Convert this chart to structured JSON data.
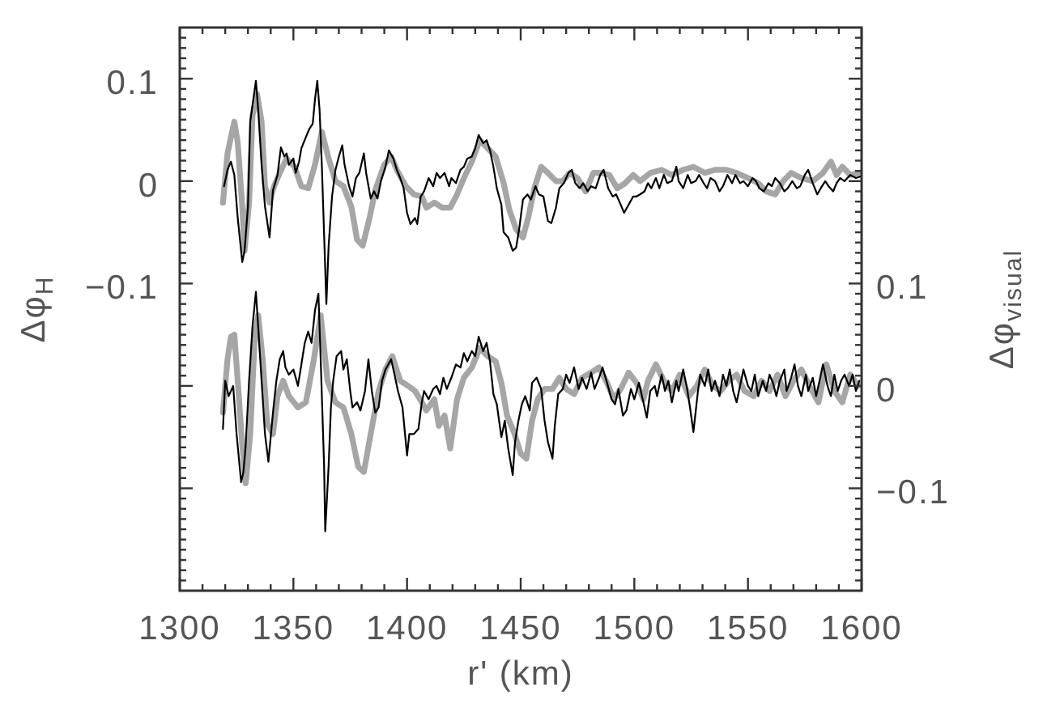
{
  "chart_data": {
    "type": "line",
    "xlabel": "r' (km)",
    "ylabel": "Δφ$_{H}$",
    "y2label": "Δφ$_{visual}$",
    "xlim": [
      1300,
      1600
    ],
    "ylim": [
      -0.4,
      0.15
    ],
    "y2lim": [
      -0.2,
      0.35
    ],
    "xticks": [
      1300,
      {
        "value": 1310,
        "label": null
      },
      {
        "value": 1320,
        "label": null
      },
      {
        "value": 1330,
        "label": null
      },
      {
        "value": 1340,
        "label": null
      },
      1350,
      {
        "value": 1360,
        "label": null
      },
      {
        "value": 1370,
        "label": null
      },
      {
        "value": 1380,
        "label": null
      },
      {
        "value": 1390,
        "label": null
      },
      1400,
      {
        "value": 1410,
        "label": null
      },
      {
        "value": 1420,
        "label": null
      },
      {
        "value": 1430,
        "label": null
      },
      {
        "value": 1440,
        "label": null
      },
      1450,
      {
        "value": 1460,
        "label": null
      },
      {
        "value": 1470,
        "label": null
      },
      {
        "value": 1480,
        "label": null
      },
      {
        "value": 1490,
        "label": null
      },
      1500,
      {
        "value": 1510,
        "label": null
      },
      {
        "value": 1520,
        "label": null
      },
      {
        "value": 1530,
        "label": null
      },
      {
        "value": 1540,
        "label": null
      },
      1550,
      {
        "value": 1560,
        "label": null
      },
      {
        "value": 1570,
        "label": null
      },
      {
        "value": 1580,
        "label": null
      },
      {
        "value": 1590,
        "label": null
      },
      1600
    ],
    "yticks": [
      {
        "value": -0.39,
        "label": null
      },
      {
        "value": -0.38,
        "label": null
      },
      {
        "value": -0.37,
        "label": null
      },
      {
        "value": -0.36,
        "label": null
      },
      {
        "value": -0.35,
        "label": null
      },
      {
        "value": -0.34,
        "label": null
      },
      {
        "value": -0.33,
        "label": null
      },
      {
        "value": -0.32,
        "label": null
      },
      {
        "value": -0.31,
        "label": null
      },
      {
        "value": -0.3,
        "label": null
      },
      {
        "value": -0.29,
        "label": null
      },
      {
        "value": -0.28,
        "label": null
      },
      {
        "value": -0.27,
        "label": null
      },
      {
        "value": -0.26,
        "label": null
      },
      {
        "value": -0.25,
        "label": null
      },
      {
        "value": -0.24,
        "label": null
      },
      {
        "value": -0.23,
        "label": null
      },
      {
        "value": -0.22,
        "label": null
      },
      {
        "value": -0.21,
        "label": null
      },
      {
        "value": -0.2,
        "label": null
      },
      {
        "value": -0.19,
        "label": null
      },
      {
        "value": -0.18,
        "label": null
      },
      {
        "value": -0.17,
        "label": null
      },
      {
        "value": -0.16,
        "label": null
      },
      {
        "value": -0.15,
        "label": null
      },
      {
        "value": -0.14,
        "label": null
      },
      {
        "value": -0.13,
        "label": null
      },
      {
        "value": -0.12,
        "label": null
      },
      {
        "value": -0.11,
        "label": null
      },
      {
        "value": -0.1,
        "label": "−0.1"
      },
      {
        "value": -0.09,
        "label": null
      },
      {
        "value": -0.08,
        "label": null
      },
      {
        "value": -0.07,
        "label": null
      },
      {
        "value": -0.06,
        "label": null
      },
      {
        "value": -0.05,
        "label": null
      },
      {
        "value": -0.04,
        "label": null
      },
      {
        "value": -0.03,
        "label": null
      },
      {
        "value": -0.02,
        "label": null
      },
      {
        "value": -0.01,
        "label": null
      },
      0,
      {
        "value": 0.01,
        "label": null
      },
      {
        "value": 0.02,
        "label": null
      },
      {
        "value": 0.03,
        "label": null
      },
      {
        "value": 0.04,
        "label": null
      },
      {
        "value": 0.05,
        "label": null
      },
      {
        "value": 0.06,
        "label": null
      },
      {
        "value": 0.07,
        "label": null
      },
      {
        "value": 0.08,
        "label": null
      },
      {
        "value": 0.09,
        "label": null
      },
      0.1,
      {
        "value": 0.11,
        "label": null
      },
      {
        "value": 0.12,
        "label": null
      },
      {
        "value": 0.13,
        "label": null
      },
      {
        "value": 0.14,
        "label": null
      }
    ],
    "y2ticks": [
      {
        "value": -0.19,
        "label": null
      },
      {
        "value": -0.18,
        "label": null
      },
      {
        "value": -0.17,
        "label": null
      },
      {
        "value": -0.16,
        "label": null
      },
      {
        "value": -0.15,
        "label": null
      },
      {
        "value": -0.14,
        "label": null
      },
      {
        "value": -0.13,
        "label": null
      },
      {
        "value": -0.12,
        "label": null
      },
      {
        "value": -0.11,
        "label": null
      },
      {
        "value": -0.1,
        "label": "−0.1"
      },
      {
        "value": -0.09,
        "label": null
      },
      {
        "value": -0.08,
        "label": null
      },
      {
        "value": -0.07,
        "label": null
      },
      {
        "value": -0.06,
        "label": null
      },
      {
        "value": -0.05,
        "label": null
      },
      {
        "value": -0.04,
        "label": null
      },
      {
        "value": -0.03,
        "label": null
      },
      {
        "value": -0.02,
        "label": null
      },
      {
        "value": -0.01,
        "label": null
      },
      0,
      {
        "value": 0.01,
        "label": null
      },
      {
        "value": 0.02,
        "label": null
      },
      {
        "value": 0.03,
        "label": null
      },
      {
        "value": 0.04,
        "label": null
      },
      {
        "value": 0.05,
        "label": null
      },
      {
        "value": 0.06,
        "label": null
      },
      {
        "value": 0.07,
        "label": null
      },
      {
        "value": 0.08,
        "label": null
      },
      {
        "value": 0.09,
        "label": null
      },
      0.1,
      {
        "value": 0.11,
        "label": null
      },
      {
        "value": 0.12,
        "label": null
      },
      {
        "value": 0.13,
        "label": null
      },
      {
        "value": 0.14,
        "label": null
      },
      {
        "value": 0.15,
        "label": null
      },
      {
        "value": 0.16,
        "label": null
      },
      {
        "value": 0.17,
        "label": null
      },
      {
        "value": 0.18,
        "label": null
      },
      {
        "value": 0.19,
        "label": null
      },
      {
        "value": 0.2,
        "label": null
      },
      {
        "value": 0.21,
        "label": null
      },
      {
        "value": 0.22,
        "label": null
      },
      {
        "value": 0.23,
        "label": null
      },
      {
        "value": 0.24,
        "label": null
      },
      {
        "value": 0.25,
        "label": null
      },
      {
        "value": 0.26,
        "label": null
      },
      {
        "value": 0.27,
        "label": null
      },
      {
        "value": 0.28,
        "label": null
      },
      {
        "value": 0.29,
        "label": null
      },
      {
        "value": 0.3,
        "label": null
      },
      {
        "value": 0.31,
        "label": null
      },
      {
        "value": 0.32,
        "label": null
      },
      {
        "value": 0.33,
        "label": null
      },
      {
        "value": 0.34,
        "label": null
      }
    ],
    "series": [
      {
        "color": "#a6a6a6",
        "x": [
          1319,
          1321,
          1322.5,
          1324,
          1325.5,
          1327.5,
          1328.5,
          1330.5,
          1332,
          1334,
          1336,
          1337.5,
          1339.5,
          1341.5,
          1344,
          1347,
          1350.5,
          1353.5,
          1356.5,
          1359.5,
          1362.5,
          1365.5,
          1368.5,
          1372,
          1375.5,
          1378,
          1380.5,
          1383.5,
          1386,
          1390,
          1393,
          1395.5,
          1399.5,
          1403,
          1406.5,
          1408.5,
          1412,
          1415.5,
          1419,
          1422,
          1425,
          1428.5,
          1432,
          1435.5,
          1439,
          1442.5,
          1445,
          1448,
          1451,
          1453.5,
          1456,
          1459,
          1462,
          1465.5,
          1468.5,
          1471.5,
          1475,
          1478.5,
          1482,
          1485.5,
          1489,
          1492.5,
          1496,
          1499.5,
          1502.5,
          1507,
          1512,
          1516.5,
          1521.5,
          1526,
          1531,
          1535.5,
          1540.5,
          1545,
          1550,
          1554.5,
          1558,
          1562,
          1565.5,
          1569,
          1573.5,
          1578.5,
          1583,
          1586.5,
          1589,
          1591.5,
          1595,
          1598.5
        ],
        "values": [
          -0.021,
          0.027,
          0.043,
          0.058,
          0.038,
          -0.025,
          -0.068,
          -0.021,
          0.064,
          0.085,
          0.058,
          -0.005,
          -0.021,
          -0.005,
          0.008,
          0.022,
          0.014,
          -0.005,
          -0.007,
          0.016,
          0.048,
          0.022,
          0,
          -0.005,
          -0.025,
          -0.057,
          -0.063,
          -0.036,
          -0.009,
          0.016,
          0.024,
          0.011,
          -0.005,
          -0.013,
          -0.015,
          -0.026,
          -0.021,
          -0.026,
          -0.026,
          -0.013,
          0.003,
          0.019,
          0.04,
          0.032,
          0.024,
          -0.002,
          -0.028,
          -0.047,
          -0.055,
          -0.034,
          -0.007,
          0.014,
          0.008,
          0,
          0,
          0.008,
          0.003,
          -0.01,
          0.008,
          0.008,
          0.006,
          -0.007,
          -0.002,
          0.006,
          0,
          0.008,
          0.011,
          0.006,
          0.011,
          0.014,
          0.008,
          0.011,
          0.011,
          0.008,
          0.003,
          -0.002,
          -0.01,
          -0.013,
          0,
          0.008,
          0.003,
          0,
          0.008,
          0.019,
          0.006,
          0.014,
          0.006,
          0.008
        ]
      },
      {
        "color": "#000000",
        "x": [
          1319.5,
          1321,
          1322.5,
          1324,
          1325.5,
          1327.5,
          1328.5,
          1330,
          1331,
          1332,
          1333.5,
          1334.5,
          1336,
          1337.5,
          1339.5,
          1341,
          1343,
          1344.5,
          1346,
          1347,
          1348,
          1350,
          1351,
          1352.5,
          1353.5,
          1355.5,
          1357,
          1358.5,
          1359.5,
          1360.5,
          1361.5,
          1362.5,
          1363.5,
          1364.5,
          1365.5,
          1367,
          1368.5,
          1370,
          1371.5,
          1372.5,
          1374.5,
          1376,
          1377.5,
          1379,
          1381,
          1382,
          1384,
          1385.5,
          1387,
          1388.5,
          1390.5,
          1392,
          1394,
          1395.5,
          1397,
          1398.5,
          1400,
          1401.5,
          1403.5,
          1404.5,
          1406,
          1407.5,
          1409.5,
          1411.5,
          1413,
          1414.5,
          1416.5,
          1418.5,
          1419.5,
          1421.5,
          1423.5,
          1425,
          1426.5,
          1428.5,
          1430,
          1431.5,
          1433.5,
          1435,
          1436.5,
          1438,
          1439.5,
          1441.5,
          1442.5,
          1444.5,
          1446.5,
          1448,
          1449.5,
          1451,
          1453,
          1454.5,
          1456.5,
          1458,
          1460,
          1462,
          1463.5,
          1465.5,
          1467,
          1469,
          1471,
          1472.5,
          1474,
          1476,
          1477.5,
          1479.5,
          1481,
          1483,
          1485,
          1486.5,
          1488.5,
          1490.5,
          1492,
          1494,
          1495.5,
          1497.5,
          1499.5,
          1501,
          1502.5,
          1504.5,
          1506,
          1507.5,
          1509.5,
          1511,
          1513,
          1514.5,
          1516.5,
          1518.5,
          1519.5,
          1521.5,
          1523.5,
          1525,
          1527,
          1528.5,
          1530.5,
          1532,
          1533.5,
          1535.5,
          1537.5,
          1539,
          1541,
          1543,
          1544.5,
          1546.5,
          1548,
          1550,
          1552,
          1553.5,
          1555,
          1557,
          1559,
          1560.5,
          1562,
          1564,
          1566,
          1567.5,
          1569.5,
          1571.5,
          1573,
          1575,
          1576.5,
          1578.5,
          1580.5,
          1582,
          1584,
          1585.5,
          1587.5,
          1589,
          1590.5,
          1592.5,
          1595,
          1597.5,
          1600
        ],
        "values": [
          -0.005,
          0.011,
          0.019,
          0.006,
          -0.036,
          -0.079,
          -0.068,
          -0.025,
          0.058,
          0.074,
          0.098,
          0.07,
          0.016,
          -0.025,
          -0.055,
          -0.009,
          0.006,
          0.033,
          0.024,
          0.027,
          0.016,
          0.022,
          0.008,
          0.019,
          0.032,
          0.043,
          0.051,
          0.056,
          0.08,
          0.098,
          0.07,
          0.016,
          -0.052,
          -0.12,
          -0.063,
          -0.015,
          0.011,
          0.024,
          0.035,
          0.016,
          -0.005,
          -0.015,
          0.003,
          0.008,
          0.027,
          0.008,
          -0.017,
          -0.01,
          -0.017,
          0,
          0.014,
          0.03,
          0.022,
          0.011,
          0.003,
          -0.007,
          -0.031,
          -0.042,
          -0.036,
          -0.042,
          -0.015,
          -0.01,
          0.003,
          -0.005,
          0.008,
          0.003,
          0.008,
          -0.005,
          0.003,
          -0.002,
          0.011,
          0.014,
          0.022,
          0.024,
          0.032,
          0.045,
          0.037,
          0.04,
          0.03,
          0.014,
          -0.007,
          -0.023,
          -0.05,
          -0.055,
          -0.068,
          -0.065,
          -0.044,
          -0.018,
          -0.013,
          -0.018,
          -0.005,
          -0.013,
          -0.015,
          -0.039,
          -0.041,
          -0.026,
          -0.007,
          -0.002,
          0.008,
          0.011,
          -0.002,
          -0.007,
          -0.002,
          -0.01,
          -0.005,
          -0.007,
          0.006,
          0.011,
          -0.007,
          -0.015,
          -0.013,
          -0.023,
          -0.031,
          -0.023,
          -0.015,
          -0.015,
          -0.013,
          -0.01,
          -0.002,
          -0.007,
          0.003,
          -0.007,
          0.006,
          -0.002,
          0,
          0.014,
          0,
          -0.007,
          0.006,
          -0.002,
          0,
          0.006,
          -0.002,
          -0.007,
          0.003,
          0,
          -0.01,
          -0.005,
          0.006,
          -0.002,
          0.006,
          -0.002,
          0,
          -0.005,
          0.003,
          0,
          -0.007,
          -0.01,
          -0.002,
          -0.005,
          0.003,
          -0.002,
          -0.01,
          -0.007,
          0,
          -0.007,
          -0.005,
          0.006,
          0.011,
          -0.002,
          -0.013,
          -0.007,
          0,
          -0.005,
          -0.01,
          -0.002,
          0.003,
          0,
          0.006,
          0.003,
          0.005
        ]
      },
      {
        "color": "#a6a6a6",
        "axis": "y2",
        "x": [
          1319,
          1321,
          1322.5,
          1324,
          1325.5,
          1327.5,
          1329,
          1331,
          1333,
          1334.5,
          1336.5,
          1338.5,
          1341,
          1343,
          1345.5,
          1348,
          1352,
          1355.5,
          1359,
          1362,
          1365,
          1368.5,
          1372,
          1375.5,
          1378.5,
          1381,
          1384,
          1387.5,
          1390.5,
          1393.5,
          1397,
          1400.5,
          1403.5,
          1406.5,
          1408.5,
          1412,
          1414,
          1416.5,
          1419,
          1422,
          1425,
          1428.5,
          1432,
          1435.5,
          1439,
          1441.5,
          1444,
          1447,
          1450,
          1452.5,
          1455,
          1457.5,
          1460.5,
          1464,
          1467,
          1470,
          1473.5,
          1477,
          1481,
          1484.5,
          1488,
          1491,
          1494,
          1497.5,
          1501,
          1504,
          1506,
          1509.5,
          1513,
          1516.5,
          1520,
          1524,
          1527.5,
          1531,
          1534.5,
          1538,
          1541.5,
          1545,
          1548.5,
          1552.5,
          1556,
          1559.5,
          1563,
          1566.5,
          1570,
          1573.5,
          1577,
          1581,
          1584.5,
          1588,
          1591.5,
          1595,
          1598.5
        ],
        "values": [
          -0.026,
          0.026,
          0.048,
          0.05,
          0.005,
          -0.058,
          -0.095,
          -0.047,
          0.048,
          0.069,
          0.026,
          -0.037,
          -0.047,
          -0.01,
          0.005,
          -0.01,
          -0.021,
          -0.016,
          0.026,
          0.069,
          0.005,
          -0.016,
          -0.021,
          -0.047,
          -0.079,
          -0.084,
          -0.047,
          -0.005,
          0.016,
          0.029,
          0.005,
          0,
          -0.005,
          -0.016,
          -0.024,
          -0.013,
          -0.039,
          -0.029,
          -0.061,
          -0.013,
          0.008,
          0.018,
          0.037,
          0.029,
          0.024,
          0.003,
          -0.029,
          -0.045,
          -0.066,
          -0.071,
          -0.034,
          -0.013,
          -0.003,
          -0.003,
          0.008,
          -0.003,
          -0.008,
          0.008,
          0.013,
          0.018,
          0.003,
          -0.013,
          -0.003,
          0.013,
          0.003,
          -0.013,
          0.005,
          0.021,
          0.005,
          -0.005,
          0.011,
          -0.01,
          0,
          0.016,
          0,
          -0.005,
          0.005,
          0.011,
          -0.005,
          -0.01,
          0.005,
          -0.005,
          0.011,
          -0.01,
          0.005,
          0.016,
          0,
          -0.016,
          0.021,
          -0.005,
          -0.016,
          0.011,
          0
        ]
      },
      {
        "color": "#000000",
        "axis": "y2",
        "x": [
          1319,
          1320,
          1321.5,
          1323.5,
          1325,
          1327,
          1328,
          1329,
          1330.5,
          1332,
          1333.5,
          1334.5,
          1336,
          1337.5,
          1339,
          1341,
          1342.5,
          1344,
          1345.5,
          1346.5,
          1348,
          1350,
          1352,
          1353.5,
          1355,
          1356.5,
          1358,
          1359.5,
          1361,
          1362,
          1363.5,
          1364,
          1365.5,
          1366.5,
          1367.5,
          1369,
          1371,
          1372,
          1373.5,
          1375,
          1376,
          1378,
          1379.5,
          1381.5,
          1383,
          1384.5,
          1386,
          1387.5,
          1389,
          1390.5,
          1393,
          1394.5,
          1396,
          1398,
          1400,
          1401,
          1403,
          1405,
          1406.5,
          1407.5,
          1409.5,
          1411.5,
          1413,
          1414.5,
          1416,
          1417.5,
          1419.5,
          1421.5,
          1423.5,
          1425,
          1426.5,
          1428.5,
          1430,
          1431.5,
          1433.5,
          1435,
          1436.5,
          1438,
          1439.5,
          1441.5,
          1443,
          1444.5,
          1446.5,
          1447.5,
          1449,
          1450.5,
          1452,
          1454,
          1455,
          1457,
          1459,
          1460.5,
          1462,
          1464,
          1465,
          1466.5,
          1468.5,
          1470,
          1471.5,
          1473.5,
          1475.5,
          1477,
          1479,
          1481,
          1482.5,
          1484.5,
          1486,
          1488,
          1490,
          1491.5,
          1493,
          1495,
          1496.5,
          1498.5,
          1500,
          1502,
          1504,
          1505.5,
          1507,
          1509,
          1510,
          1512,
          1513.5,
          1515,
          1516.5,
          1518.5,
          1519.5,
          1521.5,
          1523,
          1524.5,
          1526,
          1528,
          1529,
          1531,
          1532.5,
          1534,
          1535.5,
          1537.5,
          1539,
          1540.5,
          1542,
          1543.5,
          1545,
          1547,
          1548,
          1550,
          1551.5,
          1553,
          1554.5,
          1556.5,
          1558,
          1559.5,
          1561,
          1562.5,
          1564,
          1566,
          1567,
          1569,
          1570.5,
          1572,
          1573.5,
          1575.5,
          1576.5,
          1578.5,
          1580,
          1581.5,
          1583,
          1585,
          1586.5,
          1588,
          1589.5,
          1591,
          1592.5,
          1594.5,
          1596,
          1597.5,
          1599
        ],
        "values": [
          -0.042,
          0.005,
          -0.01,
          0,
          -0.047,
          -0.094,
          -0.084,
          -0.058,
          0.005,
          0.058,
          0.092,
          0.058,
          0.005,
          -0.047,
          -0.074,
          -0.026,
          0.005,
          0.026,
          0.034,
          0.018,
          0.011,
          0.016,
          0,
          0.021,
          0.042,
          0.053,
          0.042,
          0.074,
          0.09,
          0.026,
          -0.078,
          -0.142,
          -0.078,
          -0.021,
          0.005,
          0.029,
          0.034,
          0.016,
          0.026,
          -0.005,
          -0.021,
          -0.016,
          -0.024,
          -0.005,
          0.026,
          -0.005,
          -0.026,
          -0.021,
          0.005,
          0.016,
          0.026,
          0.011,
          -0.005,
          -0.021,
          -0.068,
          -0.047,
          -0.047,
          -0.042,
          -0.016,
          -0.005,
          -0.013,
          -0.003,
          0,
          -0.008,
          0.008,
          -0.003,
          0.008,
          0.021,
          0.018,
          0.032,
          0.024,
          0.034,
          0.029,
          0.048,
          0.034,
          0.042,
          0.024,
          -0.008,
          -0.018,
          -0.05,
          -0.034,
          -0.061,
          -0.087,
          -0.055,
          -0.034,
          -0.018,
          -0.01,
          -0.024,
          0.003,
          0.008,
          -0.003,
          -0.034,
          -0.055,
          -0.071,
          -0.039,
          -0.008,
          -0.003,
          0.011,
          0.003,
          0.018,
          -0.003,
          0.008,
          -0.003,
          0.013,
          -0.003,
          0.008,
          0.018,
          0.003,
          -0.013,
          -0.018,
          -0.003,
          -0.029,
          -0.024,
          -0.003,
          -0.013,
          0.003,
          -0.016,
          -0.031,
          -0.005,
          0,
          -0.01,
          0.011,
          -0.005,
          0.005,
          -0.016,
          0.005,
          -0.005,
          0.016,
          0,
          -0.021,
          -0.045,
          -0.005,
          0.011,
          0,
          0.016,
          -0.005,
          0.005,
          -0.01,
          0.011,
          0,
          0.016,
          -0.005,
          -0.016,
          0.005,
          0.016,
          0,
          -0.005,
          0.011,
          -0.01,
          0.005,
          -0.005,
          0.011,
          0.003,
          -0.01,
          0.005,
          0.016,
          -0.005,
          0.008,
          0.021,
          0,
          -0.01,
          0.011,
          -0.005,
          0.008,
          -0.01,
          0.005,
          0.021,
          0,
          -0.01,
          0.011,
          -0.005,
          0.005,
          0.011,
          0,
          0.011,
          -0.005,
          0.005
        ]
      }
    ]
  }
}
